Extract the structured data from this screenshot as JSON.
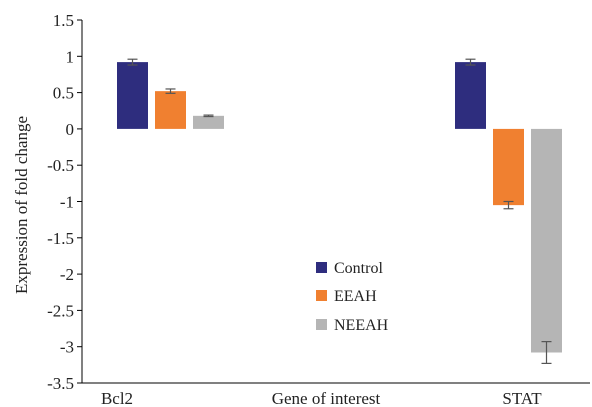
{
  "chart_data": {
    "type": "bar",
    "title": "",
    "xlabel": "Gene of interest",
    "ylabel": "Expression of fold change",
    "ylim": [
      -3.5,
      1.5
    ],
    "yticks": [
      1.5,
      1,
      0.5,
      0,
      -0.5,
      -1,
      -1.5,
      -2,
      -2.5,
      -3,
      -3.5
    ],
    "ytick_labels": [
      "1.5",
      "1",
      "0.5",
      "0",
      "-0.5",
      "-1",
      "-1.5",
      "-2",
      "-2.5",
      "-3",
      "-3.5"
    ],
    "categories": [
      "Bcl2",
      "STAT"
    ],
    "grid": false,
    "legend_position": "center",
    "series": [
      {
        "name": "Control",
        "color": "#2e2d7e",
        "values": [
          0.92,
          0.92
        ],
        "errors": [
          0.04,
          0.04
        ]
      },
      {
        "name": "EEAH",
        "color": "#f08030",
        "values": [
          0.52,
          -1.05
        ],
        "errors": [
          0.03,
          0.05
        ]
      },
      {
        "name": "NEEAH",
        "color": "#b5b5b5",
        "values": [
          0.18,
          -3.08
        ],
        "errors": [
          0.01,
          0.15
        ]
      }
    ]
  }
}
